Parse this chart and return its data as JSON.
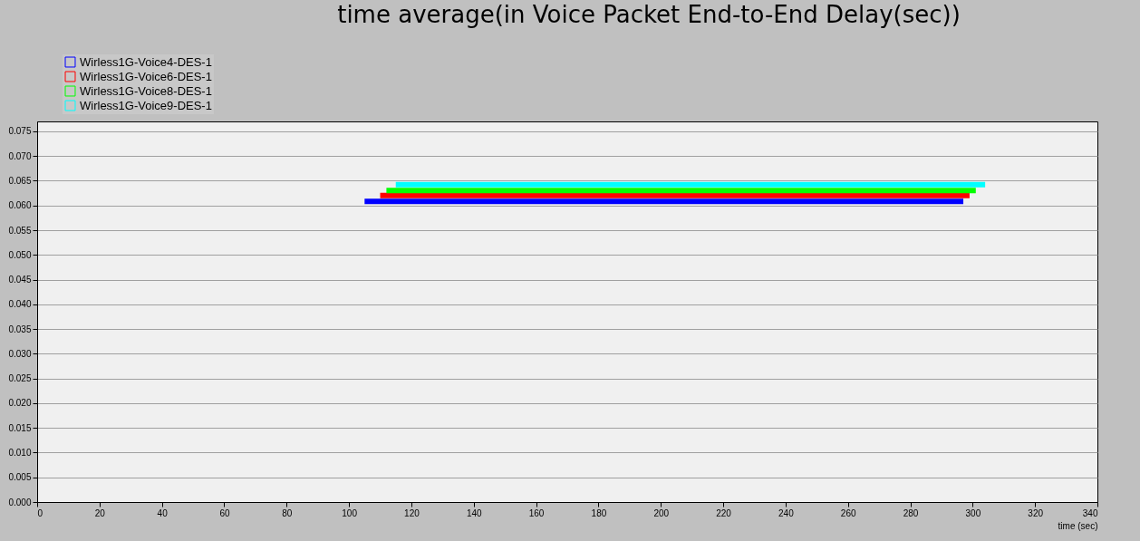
{
  "chart_data": {
    "type": "line",
    "title": "time average(in Voice Packet End-to-End Delay(sec))",
    "xlabel": "time (sec)",
    "xlim": [
      0,
      340
    ],
    "xticks": [
      0,
      20,
      40,
      60,
      80,
      100,
      120,
      140,
      160,
      180,
      200,
      220,
      240,
      260,
      280,
      300,
      320,
      340
    ],
    "ylim": [
      0,
      0.077
    ],
    "yticks": [
      {
        "value": 0,
        "label": "0.000"
      },
      {
        "value": 0.005,
        "label": "0.005"
      },
      {
        "value": 0.01,
        "label": "0.010"
      },
      {
        "value": 0.015,
        "label": "0.015"
      },
      {
        "value": 0.02,
        "label": "0.020"
      },
      {
        "value": 0.025,
        "label": "0.025"
      },
      {
        "value": 0.03,
        "label": "0.030"
      },
      {
        "value": 0.035,
        "label": "0.035"
      },
      {
        "value": 0.04,
        "label": "0.040"
      },
      {
        "value": 0.045,
        "label": "0.045"
      },
      {
        "value": 0.05,
        "label": "0.050"
      },
      {
        "value": 0.055,
        "label": "0.055"
      },
      {
        "value": 0.06,
        "label": "0.060"
      },
      {
        "value": 0.065,
        "label": "0.065"
      },
      {
        "value": 0.07,
        "label": "0.070"
      },
      {
        "value": 0.075,
        "label": "0.075"
      }
    ],
    "grid": "y",
    "legend": "top left",
    "series": [
      {
        "name": "Wirless1G-Voice4-DES-1",
        "color": "#0000ff",
        "x": [
          105,
          297
        ],
        "values": [
          0.0608,
          0.0608
        ]
      },
      {
        "name": "Wirless1G-Voice6-DES-1",
        "color": "#ff0000",
        "x": [
          110,
          299
        ],
        "values": [
          0.062,
          0.062
        ]
      },
      {
        "name": "Wirless1G-Voice8-DES-1",
        "color": "#00ff00",
        "x": [
          112,
          301
        ],
        "values": [
          0.063,
          0.063
        ]
      },
      {
        "name": "Wirless1G-Voice9-DES-1",
        "color": "#00ffff",
        "x": [
          115,
          304
        ],
        "values": [
          0.0642,
          0.0642
        ]
      }
    ]
  }
}
